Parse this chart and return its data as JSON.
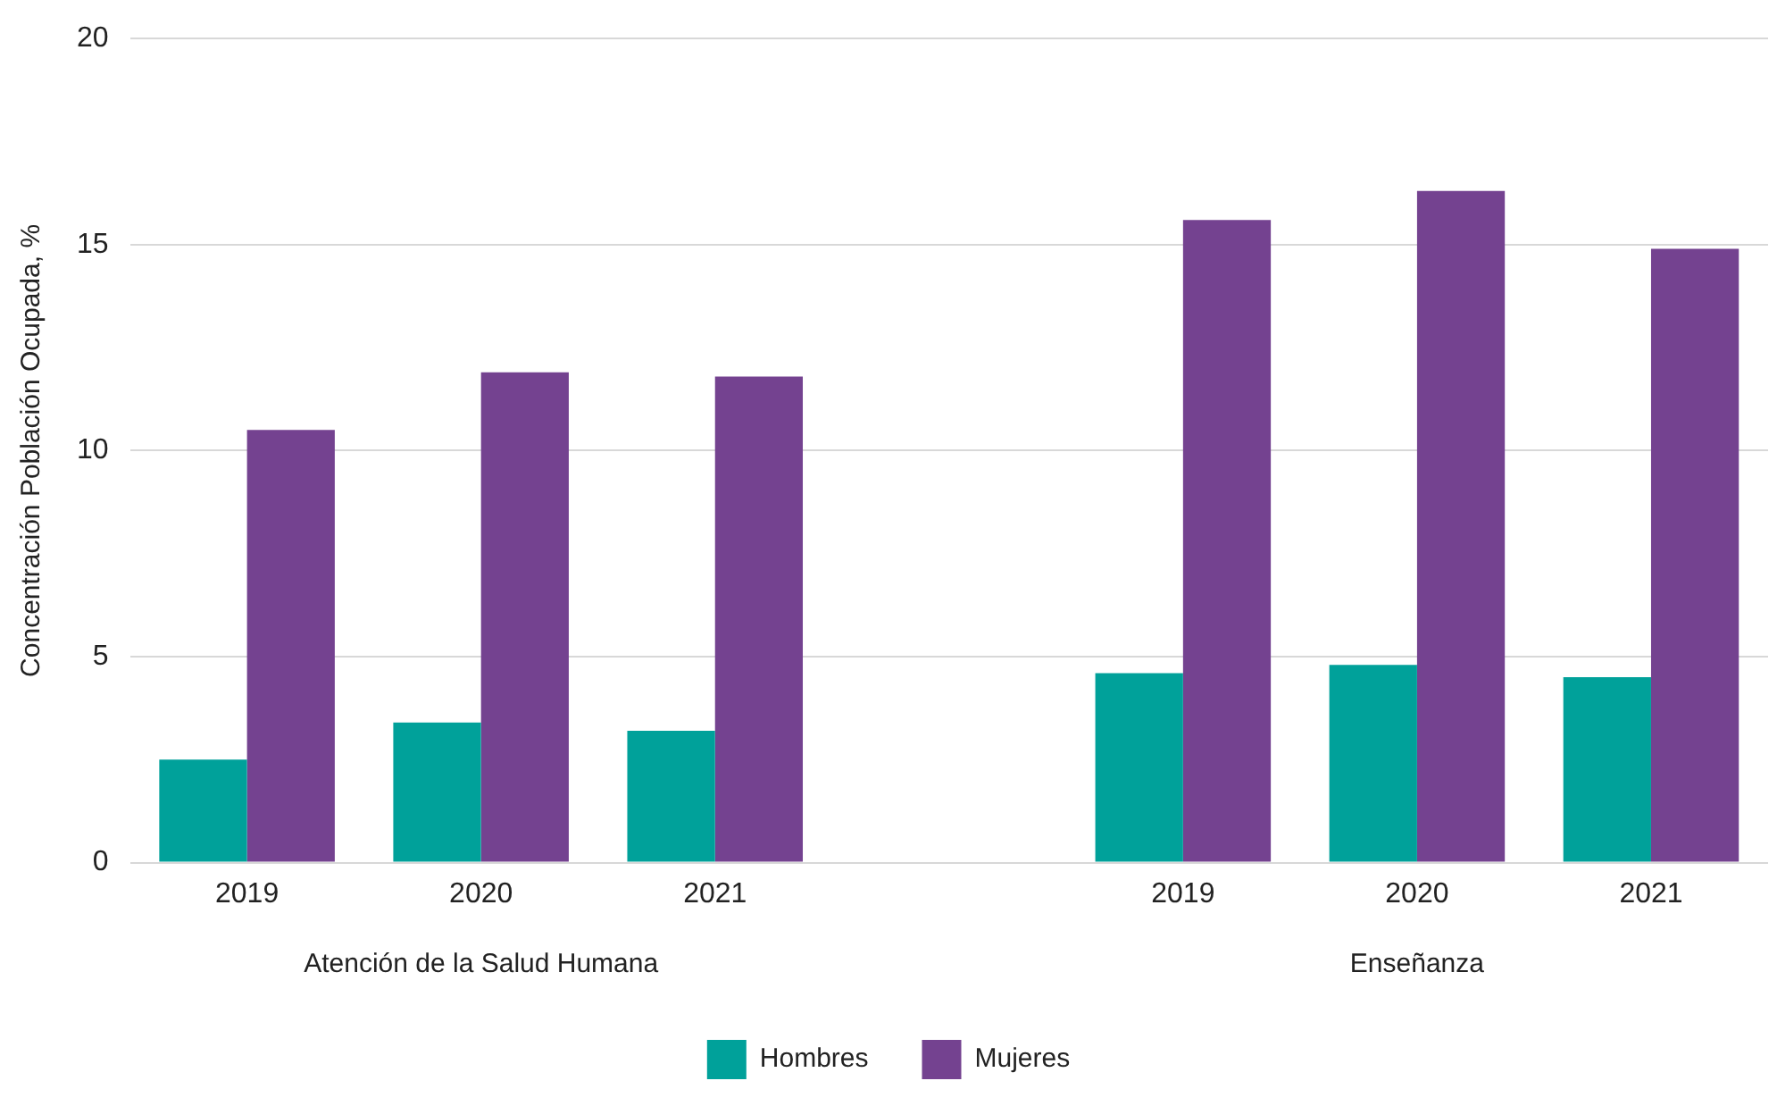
{
  "chart_data": {
    "type": "bar",
    "ylabel": "Concentración Población Ocupada, %",
    "categories": [
      "2019",
      "2020",
      "2021",
      null,
      "2019",
      "2020",
      "2021"
    ],
    "series": [
      {
        "name": "Hombres",
        "color": "#00a19a",
        "values": [
          2.5,
          3.4,
          3.2,
          null,
          4.6,
          4.8,
          4.5
        ]
      },
      {
        "name": "Mujeres",
        "color": "#744290",
        "values": [
          10.5,
          11.9,
          11.8,
          null,
          15.6,
          16.3,
          14.9
        ]
      }
    ],
    "annotations": [
      "Atención de la Salud Humana",
      "Enseñanza"
    ],
    "ylim": [
      0,
      20
    ],
    "yticks": [
      0,
      5,
      10,
      15,
      20
    ],
    "grid": "y",
    "legend": "bottom"
  }
}
